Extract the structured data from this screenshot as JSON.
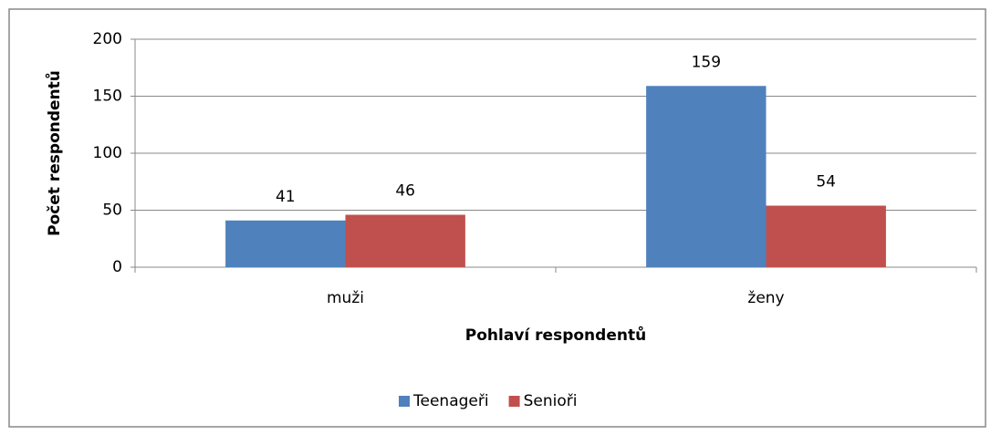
{
  "chart_data": {
    "type": "bar",
    "categories": [
      "muži",
      "ženy"
    ],
    "series": [
      {
        "name": "Teenageři",
        "color": "#4f81bd",
        "values": [
          41,
          159
        ]
      },
      {
        "name": "Senioři",
        "color": "#c0504d",
        "values": [
          46,
          54
        ]
      }
    ],
    "x_label": "Pohlaví respondentů",
    "y_label": "Počet respondentů",
    "ylim": [
      0,
      200
    ],
    "yticks": [
      0,
      50,
      100,
      150,
      200
    ],
    "grid": true,
    "legend": "bottom"
  }
}
